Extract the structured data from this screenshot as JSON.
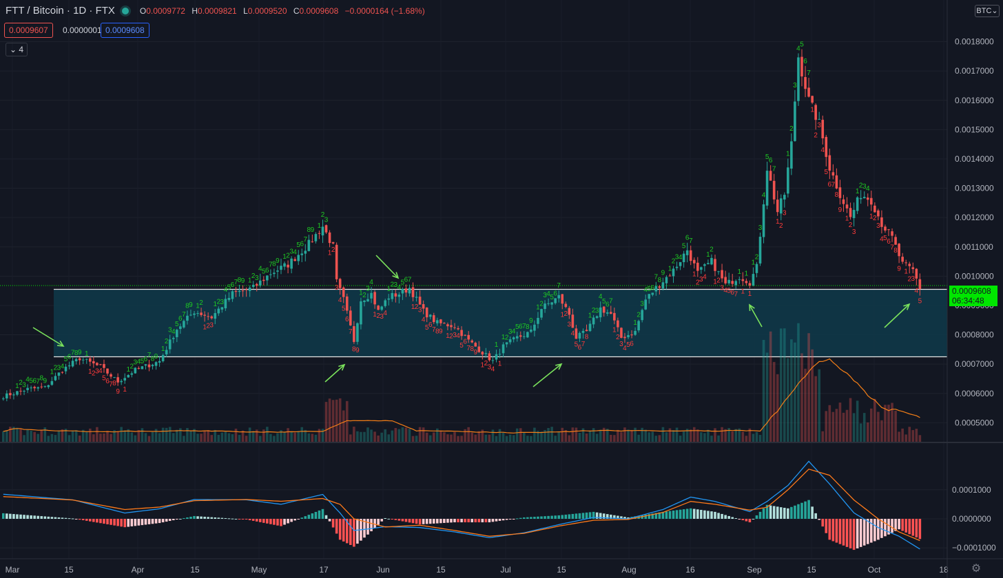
{
  "header": {
    "symbol": "FTT / Bitcoin · 1D · FTX",
    "open_label": "O",
    "open": "0.0009772",
    "high_label": "H",
    "high": "0.0009821",
    "low_label": "L",
    "low": "0.0009520",
    "close_label": "C",
    "close": "0.0009608",
    "change": "−0.0000164 (−1.68%)"
  },
  "trade": {
    "sell": "0.0009607",
    "spread": "0.0000001",
    "buy": "0.0009608"
  },
  "indicators_toggle": "4",
  "currency": "BTC",
  "price_label": {
    "price": "0.0009608",
    "countdown": "06:34:48"
  },
  "colors": {
    "up": "#26a69a",
    "down": "#ef5350",
    "background": "#131722",
    "zone": "#0f3a4a",
    "last_price": "#00e600",
    "arrow": "#7be35c",
    "macd": "#2196f3",
    "signal": "#ff7a1a"
  },
  "chart_data": [
    {
      "type": "candlestick",
      "title": "FTT / Bitcoin · 1D · FTX",
      "x_ticks": [
        "Mar",
        "15",
        "Apr",
        "15",
        "May",
        "17",
        "Jun",
        "15",
        "Jul",
        "15",
        "Aug",
        "16",
        "Sep",
        "15",
        "Oct",
        "18"
      ],
      "y_ticks": [
        "0.0018000",
        "0.0017000",
        "0.0016000",
        "0.0015000",
        "0.0014000",
        "0.0013000",
        "0.0012000",
        "0.0011000",
        "0.0010000",
        "0.0009000",
        "0.0008000",
        "0.0007000",
        "0.0006000",
        "0.0005000"
      ],
      "ylim": [
        0.00045,
        0.00186
      ],
      "series_close_anchors": [
        [
          0,
          0.00059
        ],
        [
          7,
          0.000615
        ],
        [
          12,
          0.00062
        ],
        [
          17,
          0.00068
        ],
        [
          22,
          0.00072
        ],
        [
          28,
          0.00069
        ],
        [
          33,
          0.00064
        ],
        [
          38,
          0.00068
        ],
        [
          45,
          0.00071
        ],
        [
          50,
          0.00082
        ],
        [
          55,
          0.00088
        ],
        [
          60,
          0.00086
        ],
        [
          66,
          0.00094
        ],
        [
          72,
          0.00096
        ],
        [
          77,
          0.00101
        ],
        [
          82,
          0.00104
        ],
        [
          88,
          0.00111
        ],
        [
          92,
          0.00117
        ],
        [
          95,
          0.0011
        ],
        [
          96,
          0.00098
        ],
        [
          98,
          0.00092
        ],
        [
          101,
          0.00078
        ],
        [
          103,
          0.00092
        ],
        [
          106,
          0.00094
        ],
        [
          108,
          0.00088
        ],
        [
          111,
          0.00093
        ],
        [
          114,
          0.00094
        ],
        [
          117,
          0.00096
        ],
        [
          121,
          0.00088
        ],
        [
          125,
          0.00084
        ],
        [
          130,
          0.00083
        ],
        [
          134,
          0.00078
        ],
        [
          139,
          0.00073
        ],
        [
          141,
          0.00071
        ],
        [
          144,
          0.00076
        ],
        [
          148,
          0.00079
        ],
        [
          152,
          0.00081
        ],
        [
          155,
          0.00089
        ],
        [
          160,
          0.00093
        ],
        [
          163,
          0.00087
        ],
        [
          165,
          0.00079
        ],
        [
          168,
          0.00081
        ],
        [
          172,
          0.00089
        ],
        [
          175,
          0.00087
        ],
        [
          178,
          0.00079
        ],
        [
          182,
          0.00081
        ],
        [
          185,
          0.00092
        ],
        [
          188,
          0.00096
        ],
        [
          193,
          0.00102
        ],
        [
          197,
          0.00109
        ],
        [
          200,
          0.00101
        ],
        [
          204,
          0.00105
        ],
        [
          208,
          0.00097
        ],
        [
          212,
          0.001
        ],
        [
          215,
          0.00098
        ],
        [
          217,
          0.00103
        ],
        [
          220,
          0.00137
        ],
        [
          223,
          0.00122
        ],
        [
          225,
          0.00128
        ],
        [
          227,
          0.00145
        ],
        [
          229,
          0.00175
        ],
        [
          232,
          0.0016
        ],
        [
          235,
          0.00152
        ],
        [
          238,
          0.00137
        ],
        [
          241,
          0.00128
        ],
        [
          244,
          0.0012
        ],
        [
          247,
          0.00128
        ],
        [
          250,
          0.00126
        ],
        [
          253,
          0.00118
        ],
        [
          256,
          0.00113
        ],
        [
          259,
          0.00104
        ],
        [
          262,
          0.00102
        ],
        [
          264,
          0.00096
        ]
      ],
      "td_sequential": "Green and red counts 1–9 printed above and below candles",
      "horizontal_levels": [
        0.000955,
        0.000725
      ],
      "zone": {
        "top": 0.000955,
        "bottom": 0.000725
      },
      "last_price": 0.0009608
    },
    {
      "type": "bar",
      "name": "Volume",
      "note": "Volume bars colored by candle direction with a moving average line"
    },
    {
      "type": "line",
      "name": "MACD",
      "y_ticks": [
        "0.0001000",
        "0.0000000",
        "−0.0001000"
      ],
      "ylim": [
        -0.000115,
        0.000215
      ],
      "macd_anchors": [
        [
          0,
          8.45e-05
        ],
        [
          20,
          6.55e-05
        ],
        [
          35,
          2e-05
        ],
        [
          45,
          3.45e-05
        ],
        [
          55,
          6.65e-05
        ],
        [
          70,
          6.55e-05
        ],
        [
          80,
          5e-05
        ],
        [
          92,
          8.4e-05
        ],
        [
          97,
          2e-05
        ],
        [
          101,
          -4e-05
        ],
        [
          105,
          -3.5e-05
        ],
        [
          110,
          -2.7e-05
        ],
        [
          120,
          -3e-05
        ],
        [
          130,
          -4.5e-05
        ],
        [
          140,
          -6.5e-05
        ],
        [
          150,
          -4.8e-05
        ],
        [
          160,
          -2e-05
        ],
        [
          170,
          5e-06
        ],
        [
          180,
          0.0
        ],
        [
          190,
          3.2e-05
        ],
        [
          198,
          7.5e-05
        ],
        [
          205,
          6e-05
        ],
        [
          215,
          2.5e-05
        ],
        [
          220,
          6e-05
        ],
        [
          226,
          0.000115
        ],
        [
          232,
          0.000198
        ],
        [
          238,
          0.00012
        ],
        [
          245,
          2.05e-05
        ],
        [
          252,
          -3e-05
        ],
        [
          258,
          -6e-05
        ],
        [
          264,
          -0.000104
        ]
      ],
      "signal_anchors": [
        [
          0,
          7.65e-05
        ],
        [
          20,
          6.5e-05
        ],
        [
          35,
          3.2e-05
        ],
        [
          45,
          4.05e-05
        ],
        [
          55,
          6.25e-05
        ],
        [
          70,
          6.65e-05
        ],
        [
          80,
          6.05e-05
        ],
        [
          92,
          7e-05
        ],
        [
          97,
          5e-05
        ],
        [
          101,
          0.0
        ],
        [
          110,
          -2.8e-05
        ],
        [
          120,
          -2.2e-05
        ],
        [
          130,
          -4e-05
        ],
        [
          140,
          -6e-05
        ],
        [
          150,
          -5e-05
        ],
        [
          160,
          -2.5e-05
        ],
        [
          170,
          -5e-06
        ],
        [
          180,
          -2e-06
        ],
        [
          190,
          2.2e-05
        ],
        [
          198,
          6e-05
        ],
        [
          205,
          5e-05
        ],
        [
          215,
          3e-05
        ],
        [
          220,
          4e-05
        ],
        [
          226,
          0.0001
        ],
        [
          232,
          0.000171
        ],
        [
          238,
          0.00015
        ],
        [
          245,
          6.5e-05
        ],
        [
          252,
          0.0
        ],
        [
          258,
          -4.5e-05
        ],
        [
          264,
          -7.5e-05
        ]
      ]
    }
  ]
}
